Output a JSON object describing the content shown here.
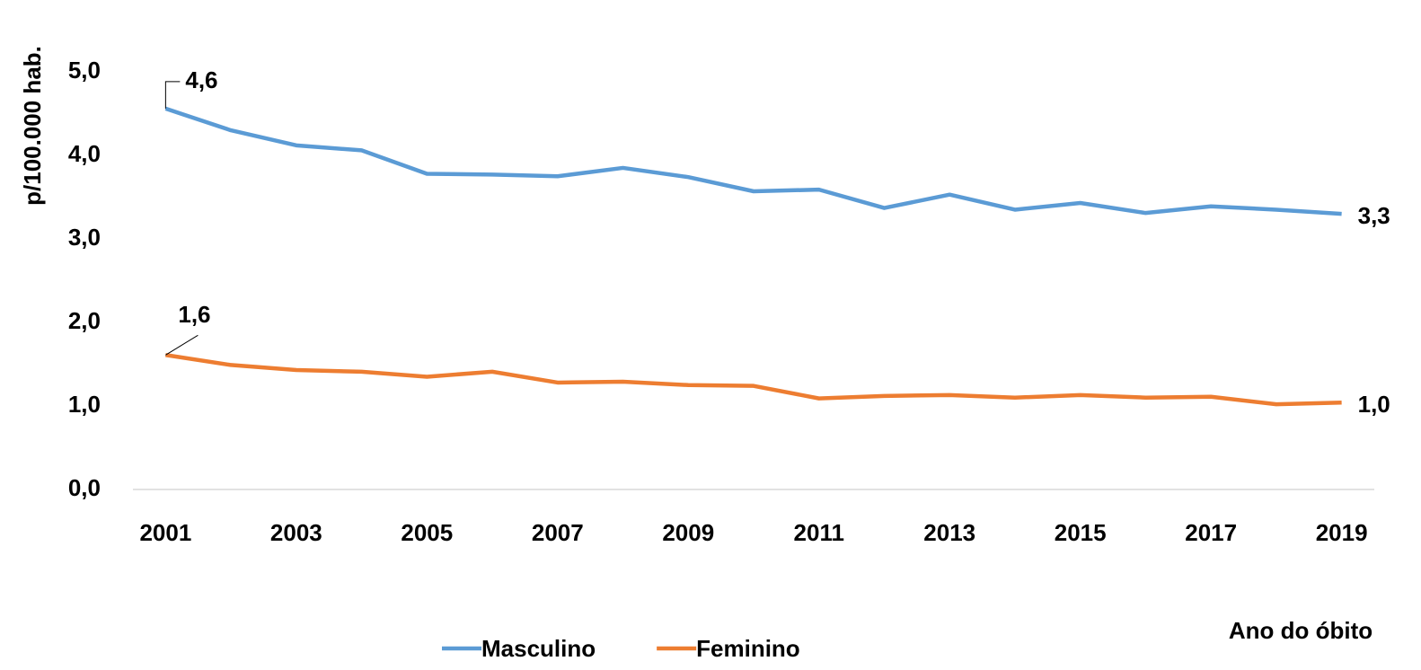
{
  "chart_data": {
    "type": "line",
    "categories": [
      "2001",
      null,
      "2003",
      null,
      "2005",
      null,
      "2007",
      null,
      "2009",
      null,
      "2011",
      null,
      "2013",
      null,
      "2015",
      null,
      "2017",
      null,
      "2019"
    ],
    "series": [
      {
        "name": "Masculino",
        "color": "#5b9bd5",
        "values": [
          4.56,
          4.3,
          4.12,
          4.06,
          3.78,
          3.77,
          3.75,
          3.85,
          3.74,
          3.57,
          3.59,
          3.37,
          3.53,
          3.35,
          3.43,
          3.31,
          3.39,
          3.35,
          3.3
        ],
        "value_labels": [
          "4,6",
          null,
          null,
          null,
          null,
          null,
          null,
          null,
          null,
          null,
          null,
          null,
          null,
          null,
          null,
          null,
          null,
          null,
          "3,3"
        ]
      },
      {
        "name": "Feminino",
        "color": "#ed7d31",
        "values": [
          1.61,
          1.49,
          1.43,
          1.41,
          1.35,
          1.41,
          1.28,
          1.29,
          1.25,
          1.24,
          1.09,
          1.12,
          1.13,
          1.1,
          1.13,
          1.1,
          1.11,
          1.02,
          1.04
        ],
        "value_labels": [
          "1,6",
          null,
          null,
          null,
          null,
          null,
          null,
          null,
          null,
          null,
          null,
          null,
          null,
          null,
          null,
          null,
          null,
          null,
          "1,0"
        ]
      }
    ],
    "ylabel": "p/100.000  hab.",
    "xlabel": "Ano do óbito",
    "ylim": [
      0,
      5
    ],
    "yticks": [
      {
        "value": 0,
        "label": "0,0"
      },
      {
        "value": 1,
        "label": "1,0"
      },
      {
        "value": 2,
        "label": "2,0"
      },
      {
        "value": 3,
        "label": "3,0"
      },
      {
        "value": 4,
        "label": "4,0"
      },
      {
        "value": 5,
        "label": "5,0"
      }
    ],
    "grid": false,
    "legend": "bottom"
  }
}
